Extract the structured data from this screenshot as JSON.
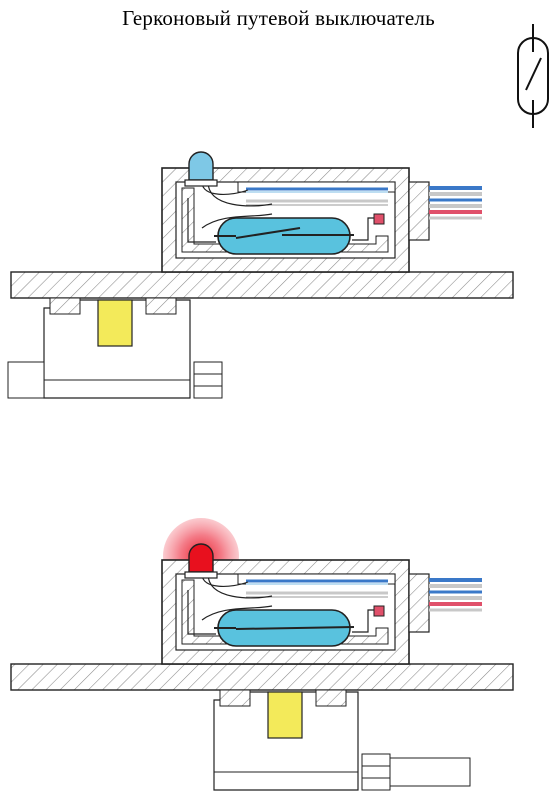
{
  "title": "Герконовый путевой выключатель",
  "colors": {
    "background": "#ffffff",
    "outline": "#222222",
    "hatch": "#8a8a8a",
    "reed_capsule": "#59c2de",
    "led_off": "#7ec8e6",
    "led_on": "#e8101e",
    "led_glow": "#f07080",
    "wire_blue": "#3a78c8",
    "wire_pink": "#e0506a",
    "wire_grey": "#c8c8c8",
    "magnet": "#f3ea5a"
  },
  "icons": {
    "symbol": "reed-switch-symbol-icon",
    "led": "led-icon",
    "magnet": "magnet-icon",
    "capsule": "reed-capsule-icon"
  },
  "states": [
    {
      "id": "open",
      "led_on": false,
      "magnet_aligned": false
    },
    {
      "id": "closed",
      "led_on": true,
      "magnet_aligned": true
    }
  ]
}
